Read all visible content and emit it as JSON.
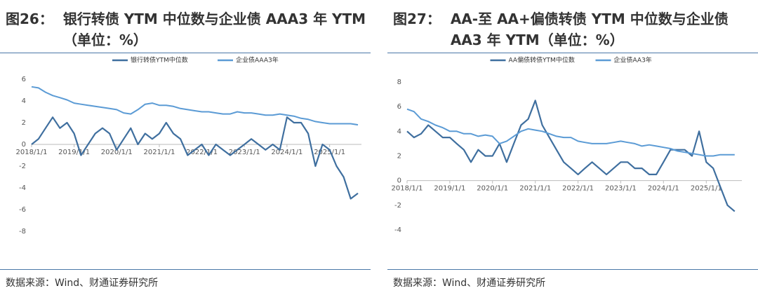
{
  "chart_data": [
    {
      "type": "line",
      "figure_label": "图26：",
      "title": "银行转债 YTM 中位数与企业债 AAA3 年 YTM（单位：%）",
      "source": "数据来源：Wind、财通证券研究所",
      "x": [
        "2018/1/1",
        "2018/3/1",
        "2018/5/1",
        "2018/7/1",
        "2018/9/1",
        "2018/11/1",
        "2019/1/1",
        "2019/3/1",
        "2019/5/1",
        "2019/7/1",
        "2019/9/1",
        "2019/11/1",
        "2020/1/1",
        "2020/3/1",
        "2020/5/1",
        "2020/7/1",
        "2020/9/1",
        "2020/11/1",
        "2021/1/1",
        "2021/3/1",
        "2021/5/1",
        "2021/7/1",
        "2021/9/1",
        "2021/11/1",
        "2022/1/1",
        "2022/3/1",
        "2022/5/1",
        "2022/7/1",
        "2022/9/1",
        "2022/11/1",
        "2023/1/1",
        "2023/3/1",
        "2023/5/1",
        "2023/7/1",
        "2023/9/1",
        "2023/11/1",
        "2024/1/1",
        "2024/3/1",
        "2024/5/1",
        "2024/7/1",
        "2024/9/1",
        "2024/11/1",
        "2025/1/1",
        "2025/3/1",
        "2025/5/1",
        "2025/7/1",
        "2025/9/1"
      ],
      "series": [
        {
          "name": "银行转债YTM中位数",
          "color": "#3f6f9f",
          "values": [
            0,
            0.5,
            1.5,
            2.5,
            1.5,
            2,
            1,
            -1,
            0,
            1,
            1.5,
            1,
            -0.5,
            0.5,
            1.5,
            0,
            1,
            0.5,
            1,
            2,
            1,
            0.5,
            -1,
            -0.5,
            0,
            -1,
            0,
            -0.5,
            -1,
            -0.5,
            0,
            0.5,
            0,
            -0.5,
            0,
            -0.5,
            2.5,
            2,
            2,
            1,
            -2,
            0,
            -0.5,
            -2,
            -3,
            -5,
            -4.5
          ]
        },
        {
          "name": "企业债AAA3年",
          "color": "#5b9bd5",
          "values": [
            5.3,
            5.2,
            4.8,
            4.5,
            4.3,
            4.1,
            3.8,
            3.7,
            3.6,
            3.5,
            3.4,
            3.3,
            3.2,
            2.9,
            2.8,
            3.2,
            3.7,
            3.8,
            3.6,
            3.6,
            3.5,
            3.3,
            3.2,
            3.1,
            3.0,
            3.0,
            2.9,
            2.8,
            2.8,
            3.0,
            2.9,
            2.9,
            2.8,
            2.7,
            2.7,
            2.8,
            2.7,
            2.6,
            2.4,
            2.3,
            2.1,
            2.0,
            1.9,
            1.9,
            1.9,
            1.9,
            1.8
          ]
        }
      ],
      "xlim": [
        "2018/1/1",
        "2025/10/1"
      ],
      "xticks": [
        "2018/1/1",
        "2019/1/1",
        "2020/1/1",
        "2021/1/1",
        "2022/1/1",
        "2023/1/1",
        "2024/1/1",
        "2025/1/1"
      ],
      "ylim": [
        -8,
        6
      ],
      "yticks": [
        -8,
        -6,
        -4,
        -2,
        0,
        2,
        4,
        6
      ]
    },
    {
      "type": "line",
      "figure_label": "图27：",
      "title": "AA-至 AA+偏债转债 YTM 中位数与企业债 AA3 年 YTM（单位：%）",
      "source": "数据来源：Wind、财通证券研究所",
      "x": [
        "2018/1/1",
        "2018/3/1",
        "2018/5/1",
        "2018/7/1",
        "2018/9/1",
        "2018/11/1",
        "2019/1/1",
        "2019/3/1",
        "2019/5/1",
        "2019/7/1",
        "2019/9/1",
        "2019/11/1",
        "2020/1/1",
        "2020/3/1",
        "2020/5/1",
        "2020/7/1",
        "2020/9/1",
        "2020/11/1",
        "2021/1/1",
        "2021/3/1",
        "2021/5/1",
        "2021/7/1",
        "2021/9/1",
        "2021/11/1",
        "2022/1/1",
        "2022/3/1",
        "2022/5/1",
        "2022/7/1",
        "2022/9/1",
        "2022/11/1",
        "2023/1/1",
        "2023/3/1",
        "2023/5/1",
        "2023/7/1",
        "2023/9/1",
        "2023/11/1",
        "2024/1/1",
        "2024/3/1",
        "2024/5/1",
        "2024/7/1",
        "2024/9/1",
        "2024/11/1",
        "2025/1/1",
        "2025/3/1",
        "2025/5/1",
        "2025/7/1",
        "2025/9/1"
      ],
      "series": [
        {
          "name": "AA偏债转债YTM中位数",
          "color": "#3f6f9f",
          "values": [
            4,
            3.5,
            3.8,
            4.5,
            4,
            3.5,
            3.5,
            3,
            2.5,
            1.5,
            2.5,
            2,
            2,
            3,
            1.5,
            3,
            4.5,
            5,
            6.5,
            4.5,
            3.5,
            2.5,
            1.5,
            1,
            0.5,
            1,
            1.5,
            1,
            0.5,
            1,
            1.5,
            1.5,
            1,
            1,
            0.5,
            0.5,
            1.5,
            2.5,
            2.5,
            2.5,
            2,
            4,
            1.5,
            1,
            -0.5,
            -2,
            -2.5
          ]
        },
        {
          "name": "企业债AA3年",
          "color": "#5b9bd5",
          "values": [
            5.8,
            5.6,
            5.0,
            4.8,
            4.5,
            4.3,
            4.0,
            4.0,
            3.8,
            3.8,
            3.6,
            3.7,
            3.6,
            3.0,
            3.2,
            3.6,
            4.0,
            4.2,
            4.1,
            4.0,
            3.8,
            3.6,
            3.5,
            3.5,
            3.2,
            3.1,
            3.0,
            3.0,
            3.0,
            3.1,
            3.2,
            3.1,
            3.0,
            2.8,
            2.9,
            2.8,
            2.7,
            2.6,
            2.4,
            2.3,
            2.2,
            2.1,
            2.0,
            2.0,
            2.1,
            2.1,
            2.1
          ]
        }
      ],
      "xlim": [
        "2018/1/1",
        "2025/11/1"
      ],
      "xticks": [
        "2018/1/1",
        "2019/1/1",
        "2020/1/1",
        "2021/1/1",
        "2022/1/1",
        "2023/1/1",
        "2024/1/1",
        "2025/1/1"
      ],
      "ylim": [
        -4,
        8
      ],
      "yticks": [
        -4,
        -2,
        0,
        2,
        4,
        6,
        8
      ]
    }
  ]
}
